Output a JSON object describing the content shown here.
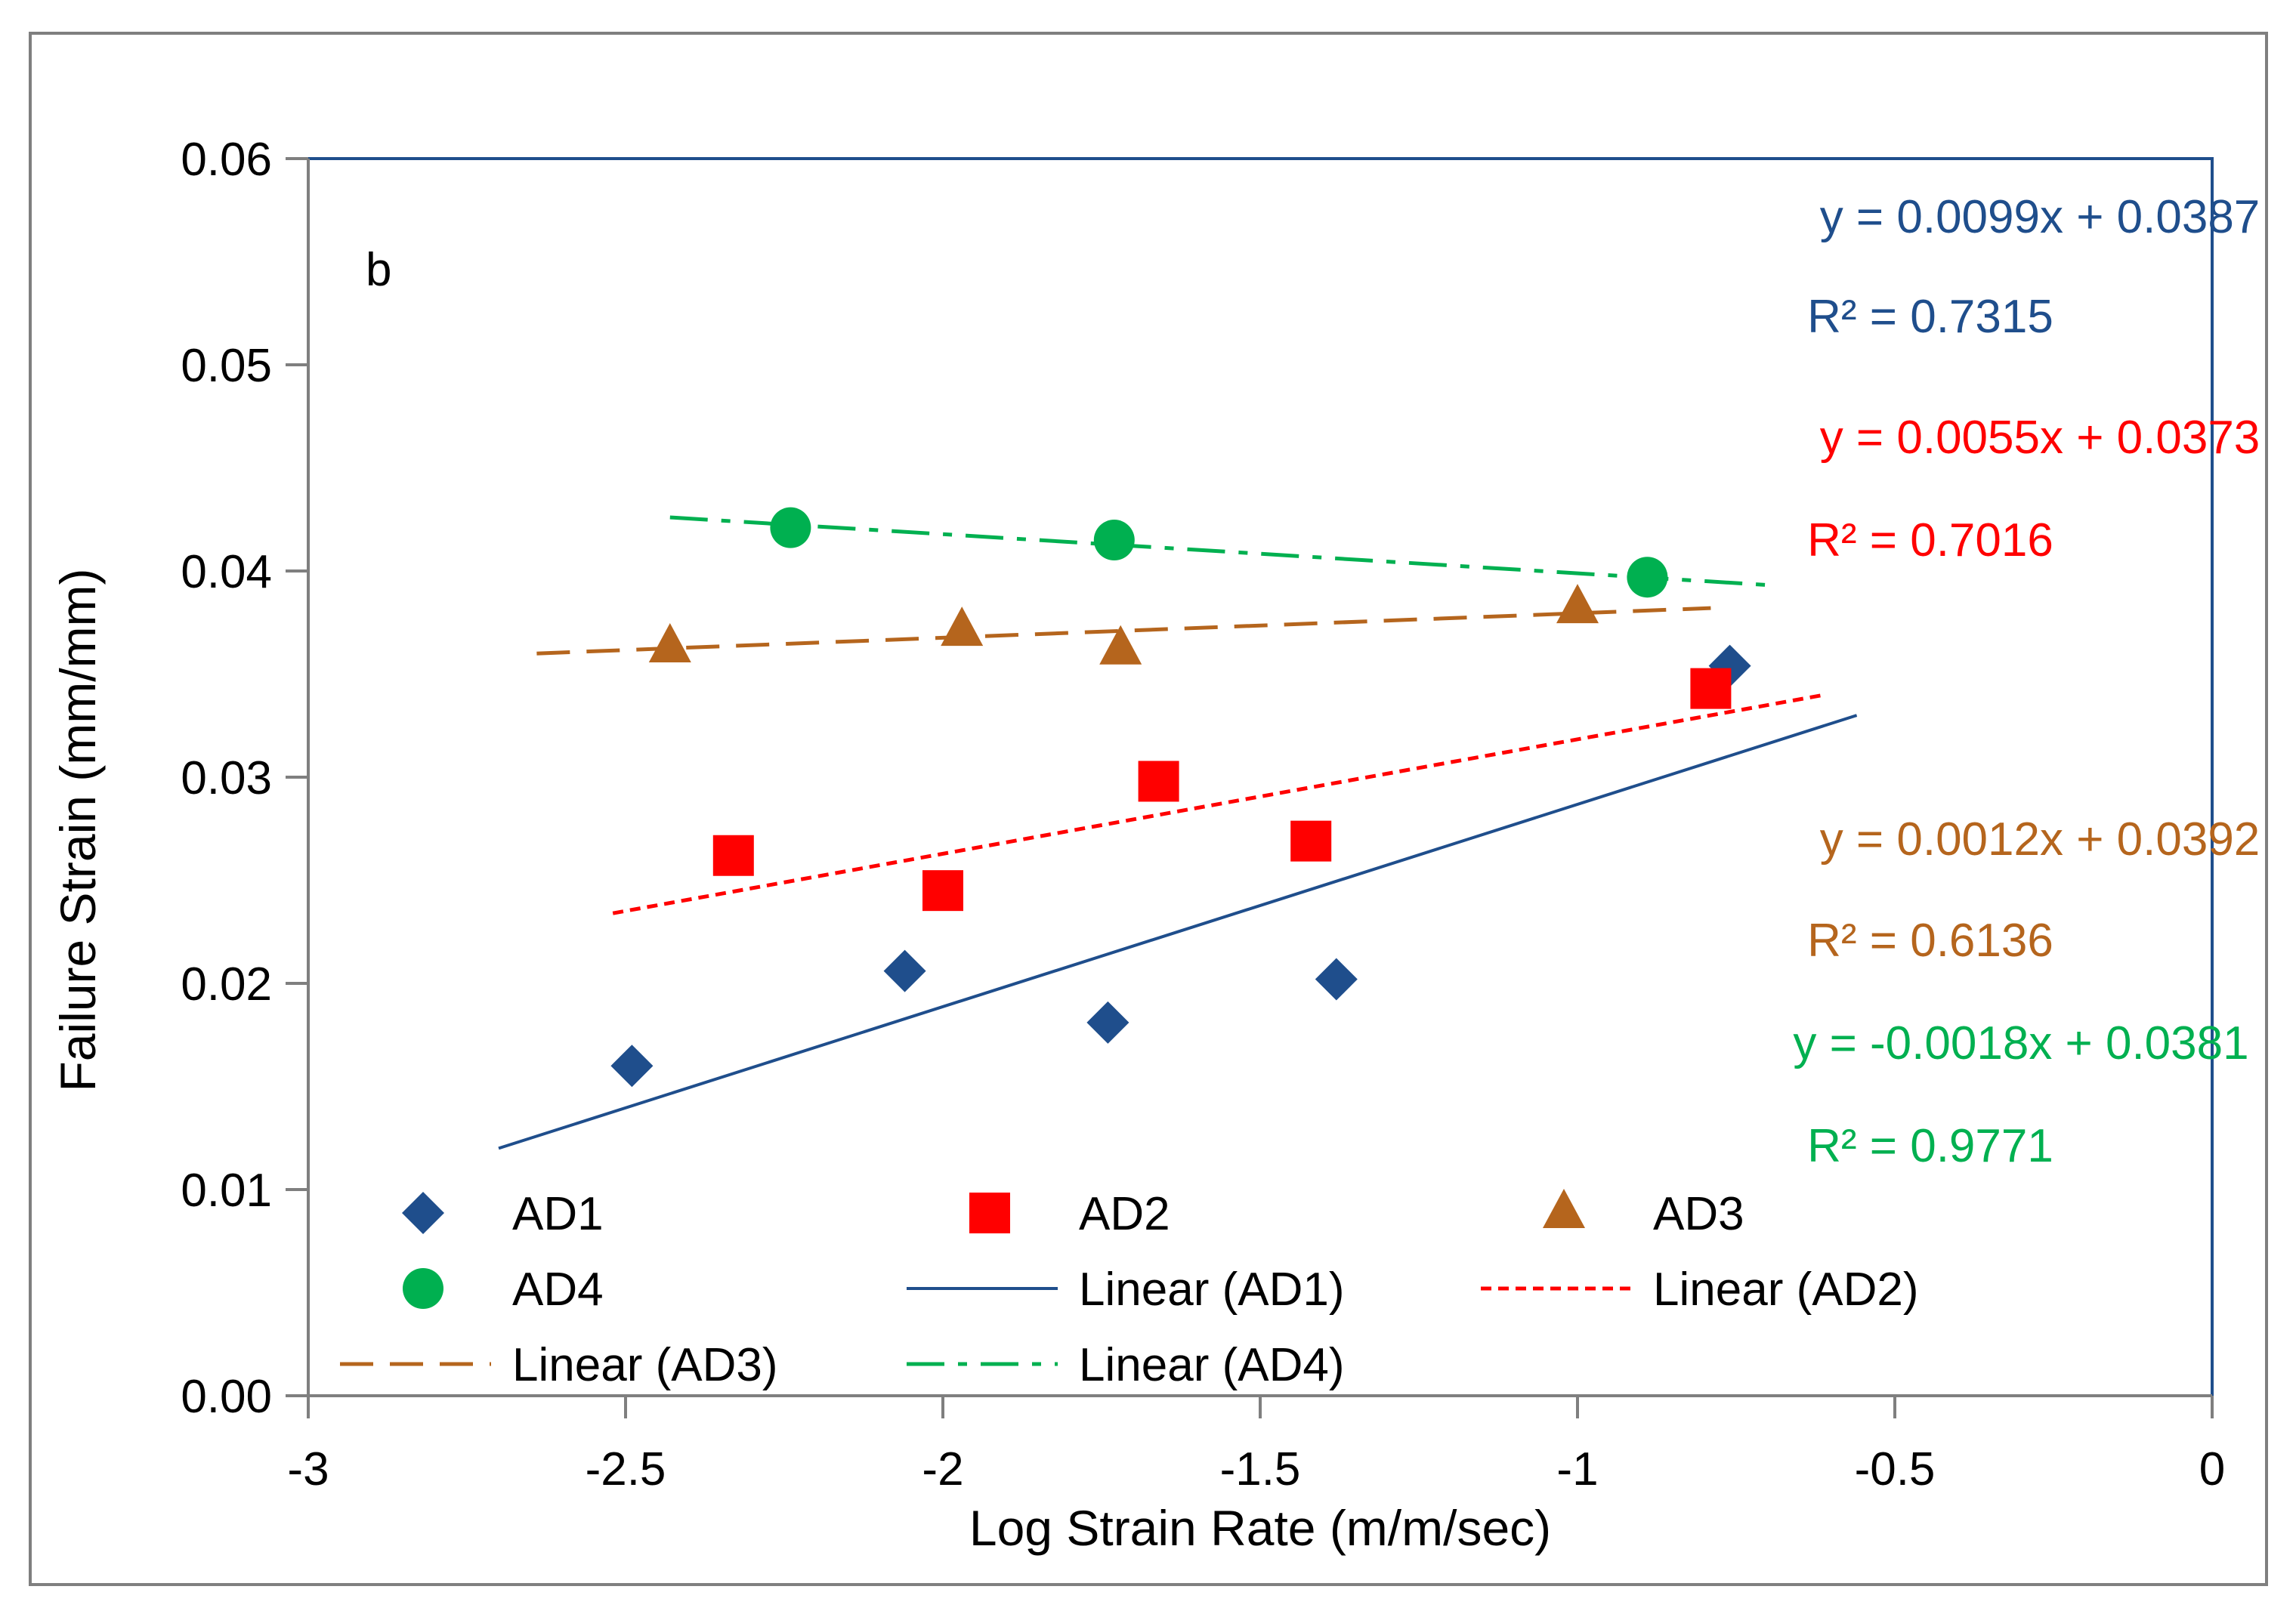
{
  "chart_data": {
    "type": "scatter",
    "panel_label": "b",
    "xlabel": "Log Strain Rate (m/m/sec)",
    "ylabel": "Failure Strain (mm/mm)",
    "xlim": [
      -3,
      0
    ],
    "ylim": [
      0,
      0.06
    ],
    "x_ticks": [
      -3,
      -2.5,
      -2,
      -1.5,
      -1,
      -0.5,
      0
    ],
    "x_tick_labels": [
      "-3",
      "-2.5",
      "-2",
      "-1.5",
      "-1",
      "-0.5",
      "0"
    ],
    "y_ticks": [
      0,
      0.01,
      0.02,
      0.03,
      0.04,
      0.05,
      0.06
    ],
    "y_tick_labels": [
      "0.00",
      "0.01",
      "0.02",
      "0.03",
      "0.04",
      "0.05",
      "0.06"
    ],
    "grid": false,
    "legend_position": "bottom-inside",
    "series": [
      {
        "name": "AD1",
        "marker": "diamond",
        "color": "#1F4E8C",
        "x": [
          -2.49,
          -2.06,
          -1.74,
          -1.38,
          -0.76
        ],
        "y": [
          0.016,
          0.0206,
          0.0181,
          0.0202,
          0.0354
        ]
      },
      {
        "name": "AD2",
        "marker": "square",
        "color": "#FF0000",
        "x": [
          -2.33,
          -2.0,
          -1.66,
          -1.42,
          -0.79
        ],
        "y": [
          0.0262,
          0.0245,
          0.0298,
          0.0269,
          0.0343
        ]
      },
      {
        "name": "AD3",
        "marker": "triangle",
        "color": "#B5651D",
        "x": [
          -2.43,
          -1.97,
          -1.72,
          -1.0
        ],
        "y": [
          0.0363,
          0.0371,
          0.0362,
          0.0382
        ]
      },
      {
        "name": "AD4",
        "marker": "circle",
        "color": "#00B050",
        "x": [
          -2.24,
          -1.73,
          -0.89
        ],
        "y": [
          0.0421,
          0.0415,
          0.0397
        ]
      }
    ],
    "trendlines": [
      {
        "name": "Linear (AD1)",
        "style": "solid",
        "color": "#1F4E8C",
        "x": [
          -2.7,
          -0.56
        ],
        "y": [
          0.012,
          0.033
        ]
      },
      {
        "name": "Linear (AD2)",
        "style": "dotted",
        "color": "#FF0000",
        "x": [
          -2.52,
          -0.61
        ],
        "y": [
          0.0234,
          0.034
        ]
      },
      {
        "name": "Linear (AD3)",
        "style": "dashed",
        "color": "#B5651D",
        "x": [
          -2.64,
          -0.79
        ],
        "y": [
          0.036,
          0.0382
        ]
      },
      {
        "name": "Linear (AD4)",
        "style": "dashdot",
        "color": "#00B050",
        "x": [
          -2.43,
          -0.69
        ],
        "y": [
          0.0426,
          0.0393
        ]
      }
    ],
    "legend": [
      {
        "label": "AD1",
        "kind": "marker",
        "ref": "AD1"
      },
      {
        "label": "AD2",
        "kind": "marker",
        "ref": "AD2"
      },
      {
        "label": "AD3",
        "kind": "marker",
        "ref": "AD3"
      },
      {
        "label": "AD4",
        "kind": "marker",
        "ref": "AD4"
      },
      {
        "label": "Linear (AD1)",
        "kind": "line",
        "ref": "Linear (AD1)"
      },
      {
        "label": "Linear (AD2)",
        "kind": "line",
        "ref": "Linear (AD2)"
      },
      {
        "label": "Linear (AD3)",
        "kind": "line",
        "ref": "Linear (AD3)"
      },
      {
        "label": "Linear (AD4)",
        "kind": "line",
        "ref": "Linear (AD4)"
      }
    ],
    "annotations": [
      {
        "name": "eq-ad1",
        "text": "y = 0.0099x + 0.0387",
        "color": "#1F4E8C"
      },
      {
        "name": "r2-ad1",
        "text": "R² = 0.7315",
        "color": "#1F4E8C"
      },
      {
        "name": "eq-ad2",
        "text": "y = 0.0055x + 0.0373",
        "color": "#FF0000"
      },
      {
        "name": "r2-ad2",
        "text": "R² = 0.7016",
        "color": "#FF0000"
      },
      {
        "name": "eq-ad3",
        "text": "y = 0.0012x + 0.0392",
        "color": "#B5651D"
      },
      {
        "name": "r2-ad3",
        "text": "R² = 0.6136",
        "color": "#B5651D"
      },
      {
        "name": "eq-ad4",
        "text": "y = -0.0018x + 0.0381",
        "color": "#00B050"
      },
      {
        "name": "r2-ad4",
        "text": "R² = 0.9771",
        "color": "#00B050"
      }
    ],
    "colors": {
      "plot_border": "#1F4E8C",
      "axis": "#7F7F7F",
      "frame": "#7F7F7F",
      "text": "#000000"
    }
  }
}
